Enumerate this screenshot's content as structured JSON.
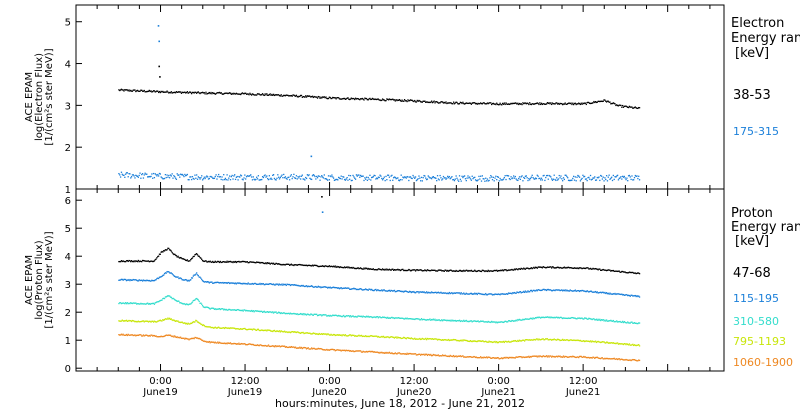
{
  "chart_data": [
    {
      "type": "scatter",
      "panel": "electron",
      "ylabel_lines": [
        "ACE EPAM",
        "log(Electron Flux)",
        "[1/(cm²s ster MeV)]"
      ],
      "ylim": [
        1,
        5.4
      ],
      "yticks": [
        1,
        2,
        3,
        4,
        5
      ],
      "legend_title": [
        "Electron",
        "Energy range",
        "[keV]"
      ],
      "series": [
        {
          "name": "38-53",
          "color": "#000000",
          "x": [
            -6,
            0,
            6,
            12,
            18,
            24,
            30,
            36,
            42,
            48,
            54,
            60,
            63,
            65,
            68
          ],
          "y": [
            3.38,
            3.34,
            3.31,
            3.29,
            3.25,
            3.19,
            3.16,
            3.12,
            3.07,
            3.05,
            3.06,
            3.05,
            3.13,
            3.0,
            2.94
          ]
        },
        {
          "name": "175-315",
          "color": "#1a7fd9",
          "x": [
            -6,
            0,
            6,
            12,
            18,
            24,
            30,
            36,
            42,
            48,
            54,
            60,
            68
          ],
          "y": [
            1.35,
            1.32,
            1.3,
            1.3,
            1.3,
            1.29,
            1.28,
            1.28,
            1.27,
            1.27,
            1.28,
            1.28,
            1.28
          ]
        }
      ],
      "outliers": [
        {
          "x": -0.4,
          "y": 4.92,
          "color": "#1a7fd9"
        },
        {
          "x": -0.3,
          "y": 4.55,
          "color": "#1a7fd9"
        },
        {
          "x": -0.3,
          "y": 3.95,
          "color": "#000000"
        },
        {
          "x": -0.2,
          "y": 3.7,
          "color": "#000000"
        },
        {
          "x": 21.3,
          "y": 1.8,
          "color": "#1a7fd9"
        }
      ]
    },
    {
      "type": "scatter",
      "panel": "proton",
      "ylabel_lines": [
        "ACE EPAM",
        "log(Proton Flux)",
        "[1/(cm²s ster MeV)]"
      ],
      "ylim": [
        -0.1,
        6.4
      ],
      "yticks": [
        0,
        1,
        2,
        3,
        4,
        5,
        6
      ],
      "legend_title": [
        "Proton",
        "Energy range",
        "[keV]"
      ],
      "series": [
        {
          "name": "47-68",
          "color": "#000000",
          "x": [
            -6,
            -1,
            0,
            1,
            2,
            3,
            4,
            5,
            6,
            7,
            12,
            18,
            24,
            30,
            36,
            42,
            48,
            54,
            60,
            68
          ],
          "y": [
            3.85,
            3.85,
            4.15,
            4.3,
            4.05,
            3.92,
            3.85,
            4.12,
            3.85,
            3.82,
            3.82,
            3.72,
            3.66,
            3.56,
            3.52,
            3.5,
            3.5,
            3.63,
            3.6,
            3.4
          ]
        },
        {
          "name": "115-195",
          "color": "#1a7fd9",
          "x": [
            -6,
            -1,
            0,
            1,
            2,
            3,
            4,
            5,
            6,
            7,
            12,
            18,
            24,
            30,
            36,
            42,
            48,
            54,
            60,
            68
          ],
          "y": [
            3.18,
            3.15,
            3.3,
            3.48,
            3.3,
            3.2,
            3.14,
            3.42,
            3.12,
            3.08,
            3.05,
            3.0,
            2.9,
            2.82,
            2.74,
            2.7,
            2.65,
            2.82,
            2.78,
            2.58
          ]
        },
        {
          "name": "310-580",
          "color": "#33ddcc",
          "x": [
            -6,
            -1,
            0,
            1,
            2,
            3,
            4,
            5,
            6,
            7,
            12,
            18,
            24,
            30,
            36,
            42,
            48,
            54,
            60,
            68
          ],
          "y": [
            2.35,
            2.32,
            2.45,
            2.62,
            2.45,
            2.34,
            2.28,
            2.52,
            2.22,
            2.15,
            2.08,
            1.98,
            1.9,
            1.85,
            1.78,
            1.72,
            1.66,
            1.84,
            1.8,
            1.62
          ]
        },
        {
          "name": "795-1193",
          "color": "#c8e60a",
          "x": [
            -6,
            -1,
            0,
            1,
            2,
            3,
            4,
            5,
            6,
            7,
            12,
            18,
            24,
            30,
            36,
            42,
            48,
            54,
            60,
            68
          ],
          "y": [
            1.72,
            1.68,
            1.72,
            1.8,
            1.72,
            1.65,
            1.6,
            1.72,
            1.55,
            1.48,
            1.42,
            1.32,
            1.22,
            1.16,
            1.08,
            1.02,
            0.95,
            1.06,
            1.0,
            0.84
          ]
        },
        {
          "name": "1060-1900",
          "color": "#ee8822",
          "x": [
            -6,
            -1,
            0,
            1,
            2,
            3,
            4,
            5,
            6,
            7,
            12,
            18,
            24,
            30,
            36,
            42,
            48,
            54,
            60,
            68
          ],
          "y": [
            1.22,
            1.18,
            1.15,
            1.2,
            1.15,
            1.1,
            1.05,
            1.12,
            1.0,
            0.95,
            0.88,
            0.78,
            0.68,
            0.6,
            0.52,
            0.45,
            0.38,
            0.45,
            0.42,
            0.3
          ]
        }
      ],
      "outliers": [
        {
          "x": 22.8,
          "y": 6.15,
          "color": "#000000"
        },
        {
          "x": 22.9,
          "y": 5.6,
          "color": "#1a7fd9"
        }
      ]
    }
  ],
  "axis": {
    "xlim": [
      -12,
      80
    ],
    "xtick_hours": [
      0,
      12,
      24,
      36,
      48,
      60
    ],
    "xtick_time_labels": [
      "0:00",
      "12:00",
      "0:00",
      "12:00",
      "0:00",
      "12:00"
    ],
    "xtick_date_labels": [
      "June19",
      "June19",
      "June20",
      "June20",
      "June21",
      "June21"
    ],
    "xlabel": "hours:minutes, June 18, 2012 - June 21, 2012"
  }
}
